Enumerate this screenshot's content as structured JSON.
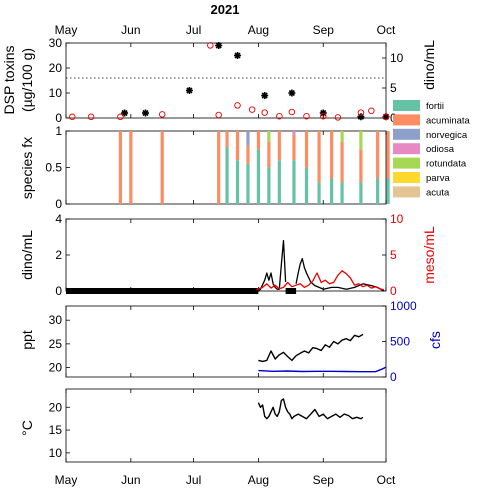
{
  "figure": {
    "title": "2021",
    "months": [
      "May",
      "Jun",
      "Jul",
      "Aug",
      "Sep",
      "Oct"
    ]
  },
  "chart_data": [
    {
      "type": "scatter",
      "panel": "dsp",
      "ylabel_left": [
        "DSP toxins",
        "(µg/100 g)"
      ],
      "ylabel_right": "dino/mL",
      "ylim_left": [
        0,
        30
      ],
      "yticks_left": [
        "0",
        "10",
        "20",
        "30"
      ],
      "ylim_right": [
        0,
        12.5
      ],
      "yticks_right": [
        "0",
        "5",
        "10"
      ],
      "threshold_left": 16,
      "series": [
        {
          "marker": "asterisk",
          "color": "#000000",
          "axis": "left",
          "x": [
            "2021-05-29",
            "2021-06-08",
            "2021-06-29",
            "2021-07-13",
            "2021-07-22",
            "2021-08-04",
            "2021-08-17",
            "2021-09-01",
            "2021-09-19",
            "2021-10-01"
          ],
          "y": [
            2,
            2,
            11,
            29,
            25,
            9,
            10,
            2,
            0.5,
            0.5
          ]
        },
        {
          "marker": "open-circle",
          "color": "#ee0000",
          "axis": "right",
          "x": [
            "2021-05-04",
            "2021-05-13",
            "2021-05-27",
            "2021-06-16",
            "2021-07-09",
            "2021-07-13",
            "2021-07-22",
            "2021-07-29",
            "2021-08-04",
            "2021-08-11",
            "2021-08-17",
            "2021-08-24",
            "2021-09-01",
            "2021-09-08",
            "2021-09-19",
            "2021-09-24",
            "2021-10-01"
          ],
          "y": [
            0.2,
            0.2,
            0.2,
            0.6,
            12.1,
            0.5,
            2.1,
            1.4,
            0.9,
            0.3,
            1.0,
            0.3,
            0.3,
            0.1,
            0.9,
            1.2,
            0.2
          ]
        }
      ]
    },
    {
      "type": "bar",
      "stacked": true,
      "panel": "species",
      "ylabel": "species fx",
      "ylim": [
        0,
        1
      ],
      "yticks": [
        "0",
        "0.5",
        "1"
      ],
      "legend_position": "top-right",
      "series": [
        {
          "name": "fortii",
          "color": "#66c2a5"
        },
        {
          "name": "acuminata",
          "color": "#fc8d62"
        },
        {
          "name": "norvegica",
          "color": "#8da0cb"
        },
        {
          "name": "odiosa",
          "color": "#e78ac3"
        },
        {
          "name": "rotundata",
          "color": "#a6d854"
        },
        {
          "name": "parva",
          "color": "#ffd92f"
        },
        {
          "name": "acuta",
          "color": "#e5c494"
        }
      ],
      "x": [
        "2021-05-27",
        "2021-06-01",
        "2021-06-16",
        "2021-07-13",
        "2021-07-17",
        "2021-07-22",
        "2021-07-27",
        "2021-08-01",
        "2021-08-06",
        "2021-08-11",
        "2021-08-18",
        "2021-08-24",
        "2021-08-30",
        "2021-09-05",
        "2021-09-10",
        "2021-09-19",
        "2021-09-27",
        "2021-10-02"
      ],
      "fractions": [
        [
          0,
          1,
          0,
          0,
          0,
          0,
          0
        ],
        [
          0,
          1,
          0,
          0,
          0,
          0,
          0
        ],
        [
          0,
          1,
          0,
          0,
          0,
          0,
          0
        ],
        [
          0,
          1,
          0,
          0,
          0,
          0,
          0
        ],
        [
          0.78,
          0.22,
          0,
          0,
          0,
          0,
          0
        ],
        [
          0.6,
          0.4,
          0,
          0,
          0,
          0,
          0
        ],
        [
          0.55,
          0.25,
          0.2,
          0,
          0,
          0,
          0
        ],
        [
          0.75,
          0.25,
          0,
          0,
          0,
          0,
          0
        ],
        [
          0.5,
          0.35,
          0,
          0,
          0.15,
          0,
          0
        ],
        [
          0.6,
          0.4,
          0,
          0,
          0,
          0,
          0
        ],
        [
          0.6,
          0.35,
          0,
          0.05,
          0,
          0,
          0
        ],
        [
          0.5,
          0.5,
          0,
          0,
          0,
          0,
          0
        ],
        [
          0.3,
          0.7,
          0,
          0,
          0,
          0,
          0
        ],
        [
          0.35,
          0.65,
          0,
          0,
          0,
          0,
          0
        ],
        [
          0.3,
          0.55,
          0,
          0,
          0.15,
          0,
          0
        ],
        [
          0.3,
          0.45,
          0,
          0,
          0.25,
          0,
          0
        ],
        [
          0.35,
          0.65,
          0,
          0,
          0,
          0,
          0
        ],
        [
          0.35,
          0.65,
          0,
          0,
          0,
          0,
          0
        ]
      ]
    },
    {
      "type": "line",
      "panel": "dino",
      "ylabel_left": "dino/mL",
      "ylabel_right": "meso/mL",
      "ylim_left": [
        0,
        4
      ],
      "yticks_left": [
        "0",
        "2",
        "4"
      ],
      "ylim_right": [
        0,
        10
      ],
      "yticks_right": [
        "0",
        "5",
        "10"
      ],
      "series": [
        {
          "color": "#000000",
          "axis": "left",
          "thick": true,
          "x": [
            "2021-05-01",
            "2021-08-01"
          ],
          "y": [
            0,
            0
          ]
        },
        {
          "color": "#000000",
          "axis": "left",
          "x": [
            "2021-08-01",
            "2021-08-02",
            "2021-08-04",
            "2021-08-05",
            "2021-08-06",
            "2021-08-07",
            "2021-08-08",
            "2021-08-09",
            "2021-08-10",
            "2021-08-11",
            "2021-08-12",
            "2021-08-13",
            "2021-08-14"
          ],
          "y": [
            0,
            0.1,
            0.6,
            1.0,
            0.6,
            1.0,
            0.4,
            0.2,
            0.1,
            0.1,
            1.5,
            2.8,
            0.5
          ]
        },
        {
          "color": "#000000",
          "axis": "left",
          "thick": true,
          "x": [
            "2021-08-14",
            "2021-08-19"
          ],
          "y": [
            0,
            0
          ]
        },
        {
          "color": "#000000",
          "axis": "left",
          "x": [
            "2021-08-19",
            "2021-08-20",
            "2021-08-21",
            "2021-08-22",
            "2021-08-23",
            "2021-08-24",
            "2021-08-26",
            "2021-08-28",
            "2021-08-30",
            "2021-09-01",
            "2021-09-05",
            "2021-09-08",
            "2021-09-12",
            "2021-09-16",
            "2021-09-20",
            "2021-09-24",
            "2021-09-27",
            "2021-09-30"
          ],
          "y": [
            0.4,
            1.0,
            1.5,
            1.8,
            1.3,
            1.0,
            0.5,
            0.3,
            0.2,
            0.1,
            0.2,
            0.2,
            0.1,
            0.2,
            0.4,
            0.3,
            0.2,
            0
          ]
        },
        {
          "color": "#ee0000",
          "axis": "right",
          "x": [
            "2021-07-31",
            "2021-08-03",
            "2021-08-05",
            "2021-08-07",
            "2021-08-09",
            "2021-08-11",
            "2021-08-13",
            "2021-08-15",
            "2021-08-17",
            "2021-08-19",
            "2021-08-21",
            "2021-08-23",
            "2021-08-25",
            "2021-08-27",
            "2021-08-29",
            "2021-08-31",
            "2021-09-02",
            "2021-09-04",
            "2021-09-06",
            "2021-09-08",
            "2021-09-10",
            "2021-09-12",
            "2021-09-14",
            "2021-09-16",
            "2021-09-18",
            "2021-09-20",
            "2021-09-22",
            "2021-09-24",
            "2021-09-26",
            "2021-09-28",
            "2021-09-30"
          ],
          "y": [
            0.2,
            0.5,
            1.0,
            0.4,
            0.8,
            0.3,
            0.5,
            1.2,
            0.6,
            0.8,
            1.0,
            0.5,
            0.8,
            1.4,
            2.5,
            1.2,
            1.5,
            1.0,
            1.2,
            2.2,
            2.8,
            2.4,
            1.8,
            0.8,
            1.0,
            0.6,
            0.8,
            0.4,
            0.6,
            0.3,
            0.2
          ]
        }
      ]
    },
    {
      "type": "line",
      "panel": "salinity",
      "ylabel_left": "ppt",
      "ylabel_right": "cfs",
      "ylim_left": [
        18,
        33
      ],
      "yticks_left": [
        "20",
        "25",
        "30"
      ],
      "ylim_right": [
        0,
        1000
      ],
      "yticks_right": [
        "0",
        "500",
        "1000"
      ],
      "series": [
        {
          "color": "#000000",
          "axis": "left",
          "x": [
            "2021-08-01",
            "2021-08-03",
            "2021-08-05",
            "2021-08-07",
            "2021-08-09",
            "2021-08-11",
            "2021-08-13",
            "2021-08-15",
            "2021-08-17",
            "2021-08-19",
            "2021-08-21",
            "2021-08-23",
            "2021-08-25",
            "2021-08-27",
            "2021-08-29",
            "2021-08-31",
            "2021-09-02",
            "2021-09-04",
            "2021-09-06",
            "2021-09-08",
            "2021-09-10",
            "2021-09-12",
            "2021-09-14",
            "2021-09-16",
            "2021-09-18",
            "2021-09-20"
          ],
          "y": [
            21.5,
            21.3,
            21.5,
            23.5,
            21.8,
            22.7,
            23.2,
            22.3,
            21.5,
            22.5,
            23.0,
            23.5,
            23.1,
            24.2,
            24.0,
            23.6,
            24.8,
            24.3,
            25.5,
            25.0,
            25.8,
            26.1,
            25.7,
            26.8,
            26.5,
            27.0
          ]
        },
        {
          "color": "#0000cc",
          "axis": "right",
          "x": [
            "2021-08-01",
            "2021-08-08",
            "2021-08-15",
            "2021-08-22",
            "2021-08-29",
            "2021-09-05",
            "2021-09-12",
            "2021-09-19",
            "2021-09-26",
            "2021-09-29",
            "2021-10-01"
          ],
          "y": [
            90,
            80,
            85,
            78,
            80,
            80,
            78,
            75,
            75,
            110,
            140
          ]
        }
      ]
    },
    {
      "type": "line",
      "panel": "temperature",
      "ylabel": "°C",
      "ylim": [
        8,
        24
      ],
      "yticks": [
        "10",
        "15",
        "20"
      ],
      "series": [
        {
          "color": "#000000",
          "x": [
            "2021-08-01",
            "2021-08-02",
            "2021-08-03",
            "2021-08-04",
            "2021-08-05",
            "2021-08-06",
            "2021-08-07",
            "2021-08-08",
            "2021-08-09",
            "2021-08-10",
            "2021-08-11",
            "2021-08-12",
            "2021-08-13",
            "2021-08-14",
            "2021-08-15",
            "2021-08-16",
            "2021-08-17",
            "2021-08-18",
            "2021-08-20",
            "2021-08-22",
            "2021-08-24",
            "2021-08-26",
            "2021-08-28",
            "2021-08-30",
            "2021-09-01",
            "2021-09-03",
            "2021-09-05",
            "2021-09-07",
            "2021-09-09",
            "2021-09-11",
            "2021-09-13",
            "2021-09-15",
            "2021-09-17",
            "2021-09-19",
            "2021-09-20"
          ],
          "y": [
            21,
            20,
            20.5,
            18,
            17.5,
            18,
            19,
            20,
            18.5,
            18,
            19,
            21.5,
            21.8,
            20,
            19,
            18.5,
            17.5,
            18,
            18.5,
            18,
            17.5,
            18.5,
            19.5,
            18,
            18.5,
            17.5,
            18,
            18.5,
            17.8,
            18.5,
            18.2,
            17.5,
            17.8,
            17.5,
            17.8
          ]
        }
      ]
    }
  ]
}
